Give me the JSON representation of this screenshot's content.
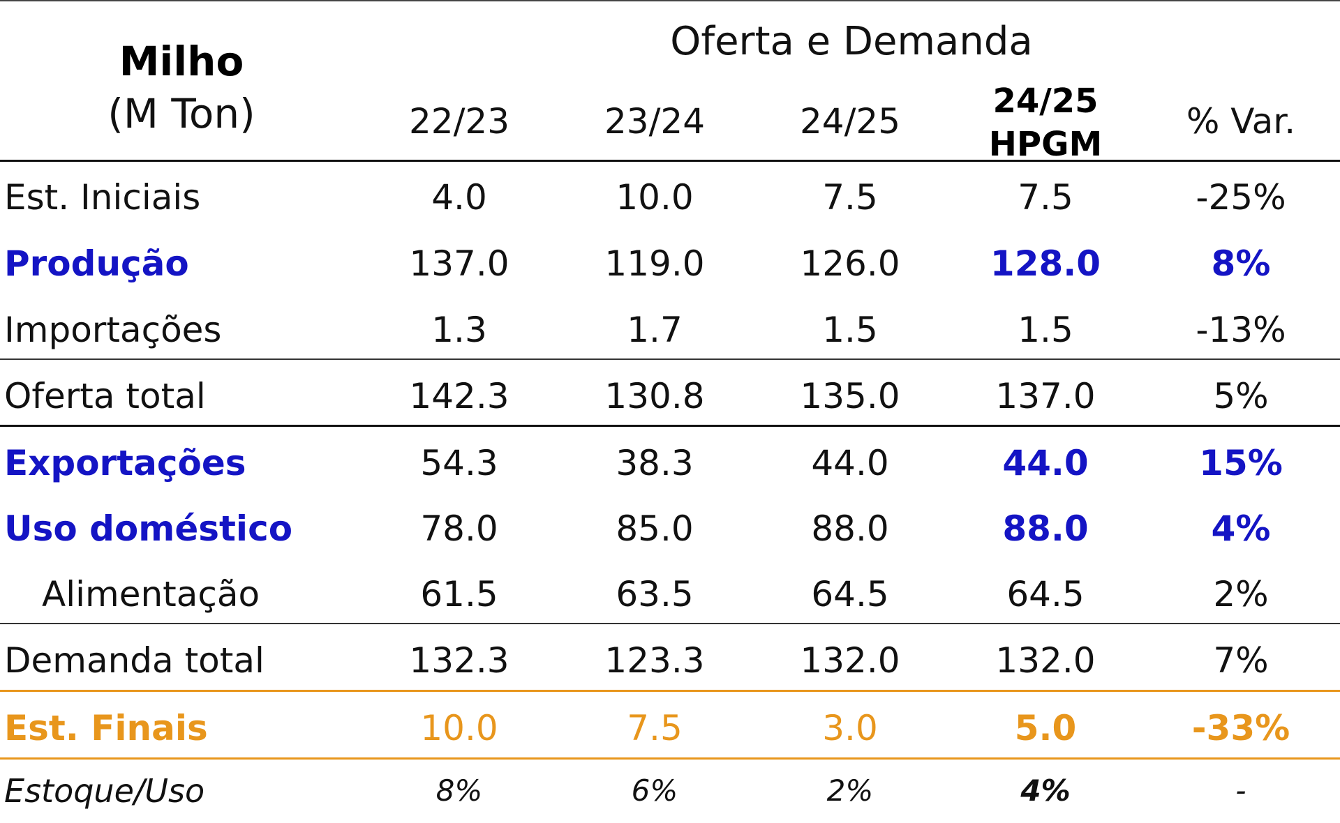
{
  "table": {
    "commodity": "Milho",
    "unit": "(M Ton)",
    "group_title": "Oferta e Demanda",
    "columns": [
      "22/23",
      "23/24",
      "24/25",
      "24/25",
      "% Var."
    ],
    "highlight_column": {
      "line1": "24/25",
      "line2": "HPGM"
    },
    "rows": [
      {
        "label": "Est. Iniciais",
        "values": [
          "4.0",
          "10.0",
          "7.5",
          "7.5",
          "-25%"
        ]
      },
      {
        "label": "Produção",
        "values": [
          "137.0",
          "119.0",
          "126.0",
          "128.0",
          "8%"
        ]
      },
      {
        "label": "Importações",
        "values": [
          "1.3",
          "1.7",
          "1.5",
          "1.5",
          "-13%"
        ]
      },
      {
        "label": "Oferta total",
        "values": [
          "142.3",
          "130.8",
          "135.0",
          "137.0",
          "5%"
        ]
      },
      {
        "label": "Exportações",
        "values": [
          "54.3",
          "38.3",
          "44.0",
          "44.0",
          "15%"
        ]
      },
      {
        "label": "Uso doméstico",
        "values": [
          "78.0",
          "85.0",
          "88.0",
          "88.0",
          "4%"
        ]
      },
      {
        "label": "Alimentação",
        "values": [
          "61.5",
          "63.5",
          "64.5",
          "64.5",
          "2%"
        ]
      },
      {
        "label": "Demanda total",
        "values": [
          "132.3",
          "123.3",
          "132.0",
          "132.0",
          "7%"
        ]
      },
      {
        "label": "Est. Finais",
        "values": [
          "10.0",
          "7.5",
          "3.0",
          "5.0",
          "-33%"
        ]
      },
      {
        "label": "Estoque/Uso",
        "values": [
          "8%",
          "6%",
          "2%",
          "4%",
          "-"
        ]
      }
    ]
  },
  "colors": {
    "highlight_blue": "#1414c4",
    "final_stock_orange": "#e8961c",
    "text": "#111111"
  }
}
